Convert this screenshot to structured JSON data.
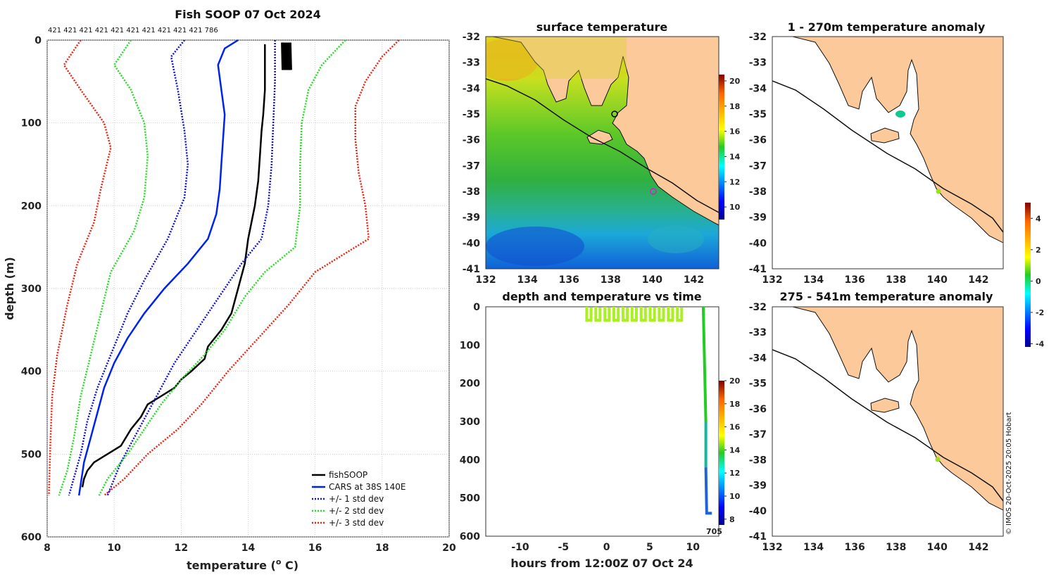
{
  "colors": {
    "fish": "#000000",
    "cars": "#0022ee",
    "std1": "#1010dd",
    "std2": "#22dd22",
    "std3": "#ee2211",
    "land": "#fbc99a",
    "coast": "#111111",
    "grid": "#bbbbbb",
    "hopper": "#aaf022",
    "profile_deep": "#1e64d6",
    "marker": "#d020d0"
  },
  "chart_data": [
    {
      "id": "profile",
      "type": "line",
      "title": "Fish SOOP 07 Oct 2024",
      "xlabel": "temperature (",
      "xlabel_sup": "o",
      "xlabel_end": " C)",
      "ylabel": "depth (m)",
      "xlim": [
        8,
        20
      ],
      "ylim": [
        0,
        600
      ],
      "xticks": [
        "8",
        "10",
        "12",
        "14",
        "16",
        "18",
        "20"
      ],
      "yticks": [
        "0",
        "100",
        "200",
        "300",
        "400",
        "500",
        "600"
      ],
      "top_counts": "421 421 421 421 421 421 421 421 421 421 786",
      "legend": [
        "fishSOOP",
        "CARS at 38S 140E",
        "+/- 1 std dev",
        "+/- 2 std dev",
        "+/- 3 std dev"
      ],
      "series": [
        {
          "name": "fishSOOP",
          "style": "solid",
          "points": [
            [
              14.5,
              5
            ],
            [
              14.5,
              30
            ],
            [
              14.5,
              60
            ],
            [
              14.45,
              90
            ],
            [
              14.4,
              110
            ],
            [
              14.35,
              140
            ],
            [
              14.3,
              170
            ],
            [
              14.2,
              200
            ],
            [
              14.0,
              240
            ],
            [
              13.9,
              270
            ],
            [
              13.7,
              300
            ],
            [
              13.5,
              330
            ],
            [
              13.2,
              350
            ],
            [
              12.8,
              370
            ],
            [
              12.7,
              385
            ],
            [
              12.3,
              400
            ],
            [
              12.0,
              410
            ],
            [
              11.8,
              420
            ],
            [
              11.4,
              430
            ],
            [
              11.0,
              440
            ],
            [
              10.8,
              455
            ],
            [
              10.5,
              470
            ],
            [
              10.2,
              490
            ],
            [
              9.8,
              500
            ],
            [
              9.4,
              510
            ],
            [
              9.2,
              520
            ],
            [
              9.1,
              530
            ],
            [
              9.05,
              540
            ]
          ]
        },
        {
          "name": "CARS at 38S 140E",
          "style": "solid",
          "points": [
            [
              13.7,
              0
            ],
            [
              13.3,
              10
            ],
            [
              13.1,
              30
            ],
            [
              13.2,
              60
            ],
            [
              13.3,
              90
            ],
            [
              13.25,
              120
            ],
            [
              13.2,
              150
            ],
            [
              13.15,
              180
            ],
            [
              13.05,
              210
            ],
            [
              12.8,
              240
            ],
            [
              12.2,
              270
            ],
            [
              11.5,
              300
            ],
            [
              10.9,
              330
            ],
            [
              10.4,
              360
            ],
            [
              10.0,
              390
            ],
            [
              9.7,
              420
            ],
            [
              9.5,
              450
            ],
            [
              9.3,
              480
            ],
            [
              9.1,
              510
            ],
            [
              8.95,
              550
            ]
          ]
        },
        {
          "name": "+/- 1 std dev",
          "style": "dotted",
          "points": [
            [
              14.8,
              0
            ],
            [
              14.8,
              50
            ],
            [
              14.75,
              100
            ],
            [
              14.7,
              150
            ],
            [
              14.6,
              200
            ],
            [
              14.4,
              240
            ],
            [
              13.8,
              270
            ],
            [
              13.3,
              300
            ],
            [
              12.8,
              330
            ],
            [
              12.3,
              360
            ],
            [
              11.8,
              390
            ],
            [
              11.4,
              420
            ],
            [
              11.0,
              450
            ],
            [
              10.6,
              480
            ],
            [
              10.2,
              510
            ],
            [
              9.8,
              550
            ]
          ]
        },
        {
          "name": "+/- 1 std dev",
          "style": "dotted",
          "points": [
            [
              12.1,
              0
            ],
            [
              11.7,
              20
            ],
            [
              11.9,
              60
            ],
            [
              12.1,
              110
            ],
            [
              12.2,
              150
            ],
            [
              12.1,
              190
            ],
            [
              11.6,
              240
            ],
            [
              10.9,
              290
            ],
            [
              10.4,
              330
            ],
            [
              9.9,
              380
            ],
            [
              9.5,
              420
            ],
            [
              9.2,
              460
            ],
            [
              9.0,
              500
            ],
            [
              8.65,
              550
            ]
          ]
        },
        {
          "name": "+/- 2 std dev",
          "style": "dotted",
          "points": [
            [
              16.9,
              0
            ],
            [
              16.2,
              30
            ],
            [
              15.8,
              60
            ],
            [
              15.6,
              100
            ],
            [
              15.55,
              150
            ],
            [
              15.55,
              200
            ],
            [
              15.4,
              250
            ],
            [
              14.5,
              280
            ],
            [
              13.9,
              310
            ],
            [
              13.3,
              350
            ],
            [
              12.7,
              380
            ],
            [
              12.0,
              410
            ],
            [
              11.4,
              440
            ],
            [
              10.9,
              470
            ],
            [
              10.4,
              500
            ],
            [
              9.8,
              530
            ],
            [
              9.55,
              550
            ]
          ]
        },
        {
          "name": "+/- 2 std dev",
          "style": "dotted",
          "points": [
            [
              10.5,
              0
            ],
            [
              10.0,
              30
            ],
            [
              10.5,
              60
            ],
            [
              10.9,
              100
            ],
            [
              11.0,
              140
            ],
            [
              10.9,
              190
            ],
            [
              10.6,
              230
            ],
            [
              9.9,
              280
            ],
            [
              9.6,
              330
            ],
            [
              9.3,
              380
            ],
            [
              9.0,
              430
            ],
            [
              8.8,
              480
            ],
            [
              8.6,
              520
            ],
            [
              8.35,
              550
            ]
          ]
        },
        {
          "name": "+/- 3 std dev",
          "style": "dotted",
          "points": [
            [
              18.5,
              0
            ],
            [
              18.0,
              20
            ],
            [
              17.5,
              50
            ],
            [
              17.2,
              80
            ],
            [
              17.2,
              120
            ],
            [
              17.3,
              160
            ],
            [
              17.5,
              200
            ],
            [
              17.6,
              240
            ],
            [
              16.0,
              280
            ],
            [
              15.2,
              320
            ],
            [
              14.3,
              360
            ],
            [
              13.4,
              400
            ],
            [
              12.6,
              440
            ],
            [
              11.9,
              470
            ],
            [
              11.0,
              500
            ],
            [
              10.3,
              530
            ],
            [
              9.7,
              550
            ]
          ]
        },
        {
          "name": "+/- 3 std dev",
          "style": "dotted",
          "points": [
            [
              9.0,
              0
            ],
            [
              8.5,
              30
            ],
            [
              9.0,
              60
            ],
            [
              9.7,
              100
            ],
            [
              9.9,
              130
            ],
            [
              9.6,
              180
            ],
            [
              9.4,
              220
            ],
            [
              8.9,
              270
            ],
            [
              8.6,
              320
            ],
            [
              8.3,
              380
            ],
            [
              8.15,
              430
            ],
            [
              8.1,
              480
            ],
            [
              8.05,
              550
            ]
          ]
        }
      ]
    },
    {
      "id": "sst",
      "type": "heatmap",
      "title": "surface temperature",
      "xlim": [
        132,
        143.2
      ],
      "ylim": [
        -41,
        -32
      ],
      "xticks": [
        "132",
        "134",
        "136",
        "138",
        "140",
        "142"
      ],
      "yticks": [
        "-32",
        "-33",
        "-34",
        "-35",
        "-36",
        "-37",
        "-38",
        "-39",
        "-40",
        "-41"
      ],
      "colorbar": {
        "range": [
          9,
          20.5
        ],
        "ticks": [
          "10",
          "12",
          "14",
          "16",
          "18",
          "20"
        ]
      }
    },
    {
      "id": "timeseries",
      "type": "scatter",
      "title": "depth and temperature vs time",
      "xlabel": "hours from 12:00Z 07 Oct 24",
      "xlim": [
        -14,
        13
      ],
      "ylim": [
        0,
        600
      ],
      "xticks": [
        "-10",
        "-5",
        "0",
        "5",
        "10"
      ],
      "yticks": [
        "0",
        "100",
        "200",
        "300",
        "400",
        "500",
        "600"
      ],
      "annotation": "705",
      "colorbar": {
        "range": [
          7.5,
          20
        ],
        "ticks": [
          "8",
          "10",
          "12",
          "14",
          "16",
          "18",
          "20"
        ]
      }
    },
    {
      "id": "anom1",
      "type": "scatter",
      "title": "1 - 270m temperature anomaly",
      "xlim": [
        132,
        143.2
      ],
      "ylim": [
        -41,
        -32
      ],
      "xticks": [
        "132",
        "134",
        "136",
        "138",
        "140",
        "142"
      ],
      "yticks": [
        "-32",
        "-33",
        "-34",
        "-35",
        "-36",
        "-37",
        "-38",
        "-39",
        "-40",
        "-41"
      ]
    },
    {
      "id": "anom2",
      "type": "scatter",
      "title": "275 - 541m temperature anomaly",
      "xlim": [
        132,
        143.2
      ],
      "ylim": [
        -41,
        -32
      ],
      "xticks": [
        "132",
        "134",
        "136",
        "138",
        "140",
        "142"
      ],
      "yticks": [
        "-32",
        "-33",
        "-34",
        "-35",
        "-36",
        "-37",
        "-38",
        "-39",
        "-40",
        "-41"
      ]
    },
    {
      "id": "anom_colorbar",
      "type": "heatmap",
      "range": [
        -4.2,
        5
      ],
      "ticks": [
        "-4",
        "-2",
        "0",
        "2",
        "4"
      ]
    }
  ],
  "credit": "© IMOS 20-Oct-2025 20:05 Hobart"
}
